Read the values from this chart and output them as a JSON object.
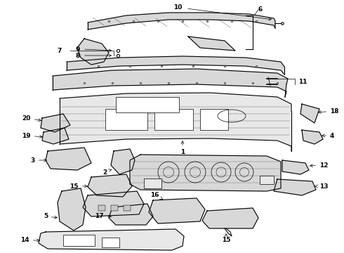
{
  "bg_color": "#ffffff",
  "line_color": "#000000",
  "fig_width": 4.9,
  "fig_height": 3.6,
  "dpi": 100,
  "fill_light": "#e8e8e8",
  "fill_mid": "#d8d8d8",
  "fill_dark": "#c8c8c8"
}
